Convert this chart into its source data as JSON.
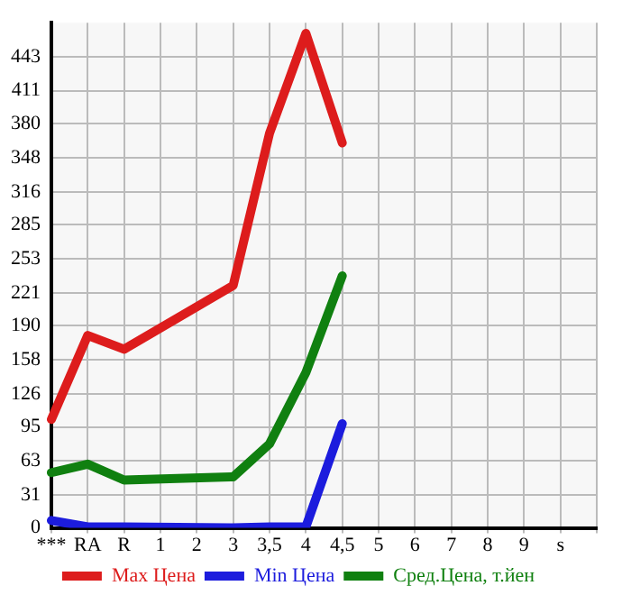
{
  "chart_data": {
    "type": "line",
    "categories": [
      "***",
      "RA",
      "R",
      "1",
      "2",
      "3",
      "3,5",
      "4",
      "4,5",
      "5",
      "6",
      "7",
      "8",
      "9",
      "s",
      null
    ],
    "series": [
      {
        "name": "Max Цена",
        "color": "#dd1c1c",
        "values": [
          102,
          181,
          168,
          null,
          null,
          228,
          371,
          465,
          362,
          null,
          null,
          null,
          null,
          null,
          null,
          null
        ]
      },
      {
        "name": "Min Цена",
        "color": "#1c1cdd",
        "values": [
          7,
          1,
          1,
          null,
          null,
          0,
          1,
          1,
          98,
          null,
          null,
          null,
          null,
          null,
          null,
          null
        ]
      },
      {
        "name": "Сред.Цена, т.йен",
        "color": "#108010",
        "values": [
          52,
          60,
          45,
          null,
          null,
          48,
          79,
          146,
          237,
          null,
          null,
          null,
          null,
          null,
          null,
          null
        ]
      }
    ],
    "ylim": [
      0,
      475
    ],
    "yticks": [
      0,
      31,
      63,
      95,
      126,
      158,
      190,
      221,
      253,
      285,
      316,
      348,
      380,
      411,
      443
    ],
    "grid": true,
    "legend": "bottom",
    "marker": "none",
    "line_style": "solid"
  }
}
